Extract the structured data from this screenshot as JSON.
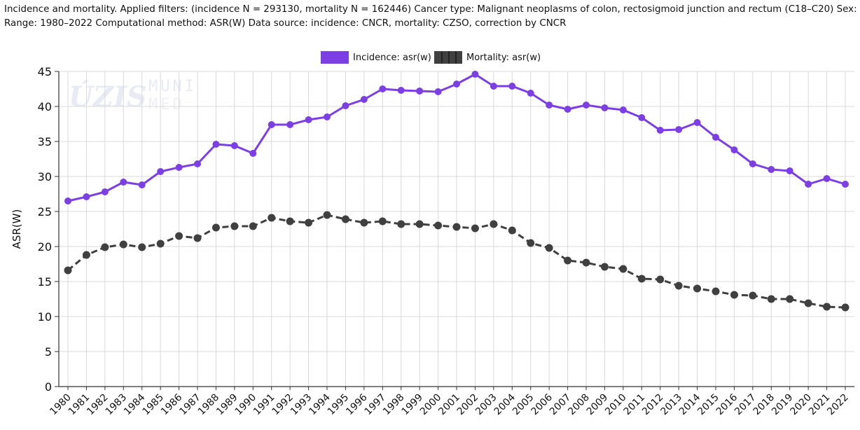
{
  "header": {
    "line1": "Incidence and mortality. Applied filters: (incidence N = 293130, mortality N = 162446) Cancer type: Malignant neoplasms of colon, rectosigmoid junction and rectum (C18–C20) Sex: bo",
    "line2": "Range: 1980–2022 Computational method: ASR(W) Data source: incidence: CNCR, mortality: CZSO, correction by CNCR"
  },
  "watermark": {
    "left": "ÚZIS",
    "right_top": "MUNI",
    "right_bottom": "MED"
  },
  "colors": {
    "incidence": "#7b3fe4",
    "mortality": "#404040",
    "grid": "#d9d9d9"
  },
  "chart_data": {
    "type": "line",
    "ylabel": "ASR(W)",
    "ylim": [
      0,
      45
    ],
    "yticks": [
      0,
      5,
      10,
      15,
      20,
      25,
      30,
      35,
      40,
      45
    ],
    "grid": true,
    "legend_position": "top",
    "x": [
      "1980",
      "1981",
      "1982",
      "1983",
      "1984",
      "1985",
      "1986",
      "1987",
      "1988",
      "1989",
      "1990",
      "1991",
      "1992",
      "1993",
      "1994",
      "1995",
      "1996",
      "1997",
      "1998",
      "1999",
      "2000",
      "2001",
      "2002",
      "2003",
      "2004",
      "2005",
      "2006",
      "2007",
      "2008",
      "2009",
      "2010",
      "2011",
      "2012",
      "2013",
      "2014",
      "2015",
      "2016",
      "2017",
      "2018",
      "2019",
      "2020",
      "2021",
      "2022"
    ],
    "series": [
      {
        "name": "Incidence: asr(w)",
        "style": "solid",
        "values": [
          26.5,
          27.1,
          27.8,
          29.2,
          28.8,
          30.7,
          31.3,
          31.8,
          34.6,
          34.4,
          33.3,
          37.4,
          37.4,
          38.1,
          38.5,
          40.1,
          41.0,
          42.5,
          42.3,
          42.2,
          42.1,
          43.2,
          44.6,
          42.9,
          42.9,
          41.9,
          40.2,
          39.6,
          40.2,
          39.8,
          39.5,
          38.4,
          36.6,
          36.7,
          37.7,
          35.6,
          33.8,
          31.8,
          31.0,
          30.8,
          28.9,
          29.7,
          28.9
        ]
      },
      {
        "name": "Mortality: asr(w)",
        "style": "dashed",
        "values": [
          16.6,
          18.8,
          19.9,
          20.3,
          19.9,
          20.4,
          21.5,
          21.2,
          22.7,
          22.9,
          22.9,
          24.1,
          23.6,
          23.4,
          24.5,
          23.9,
          23.4,
          23.6,
          23.2,
          23.2,
          23.0,
          22.8,
          22.6,
          23.2,
          22.3,
          20.5,
          19.8,
          18.0,
          17.7,
          17.1,
          16.8,
          15.4,
          15.3,
          14.4,
          14.0,
          13.6,
          13.1,
          13.0,
          12.5,
          12.5,
          11.9,
          11.4,
          11.3
        ]
      }
    ]
  }
}
